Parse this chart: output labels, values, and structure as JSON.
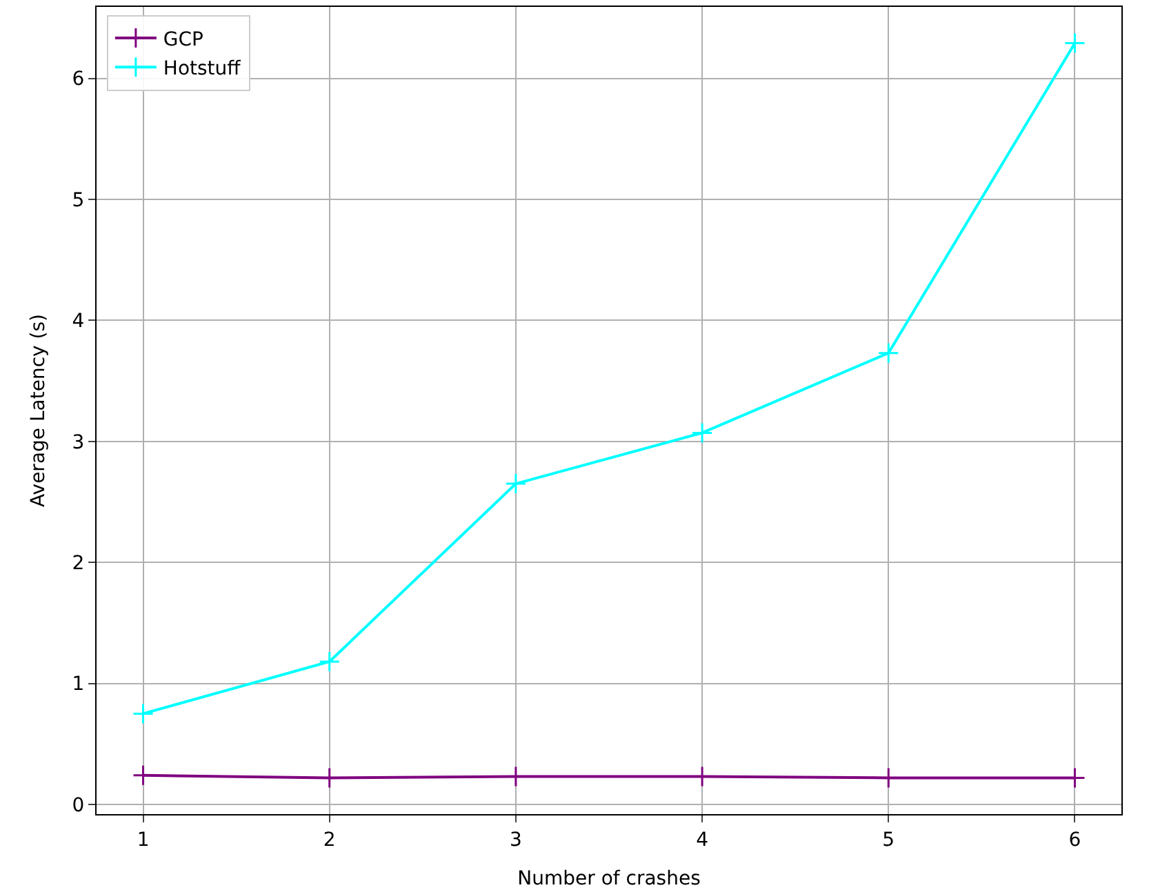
{
  "chart_data": {
    "type": "line",
    "xlabel": "Number of crashes",
    "ylabel": "Average Latency (s)",
    "x": [
      1,
      2,
      3,
      4,
      5,
      6
    ],
    "series": [
      {
        "name": "GCP",
        "color": "#800080",
        "values": [
          0.24,
          0.22,
          0.23,
          0.23,
          0.22,
          0.22
        ]
      },
      {
        "name": "Hotstuff",
        "color": "#00ffff",
        "values": [
          0.75,
          1.18,
          2.65,
          3.07,
          3.73,
          6.29
        ]
      }
    ],
    "xlim": [
      0.75,
      6.25
    ],
    "xticks": [
      1,
      2,
      3,
      4,
      5,
      6
    ],
    "ylim": [
      -0.08,
      6.59
    ],
    "yticks": [
      0,
      1,
      2,
      3,
      4,
      5,
      6
    ],
    "grid": true,
    "legend": "top left",
    "marker": "cross",
    "line_style": "solid"
  }
}
